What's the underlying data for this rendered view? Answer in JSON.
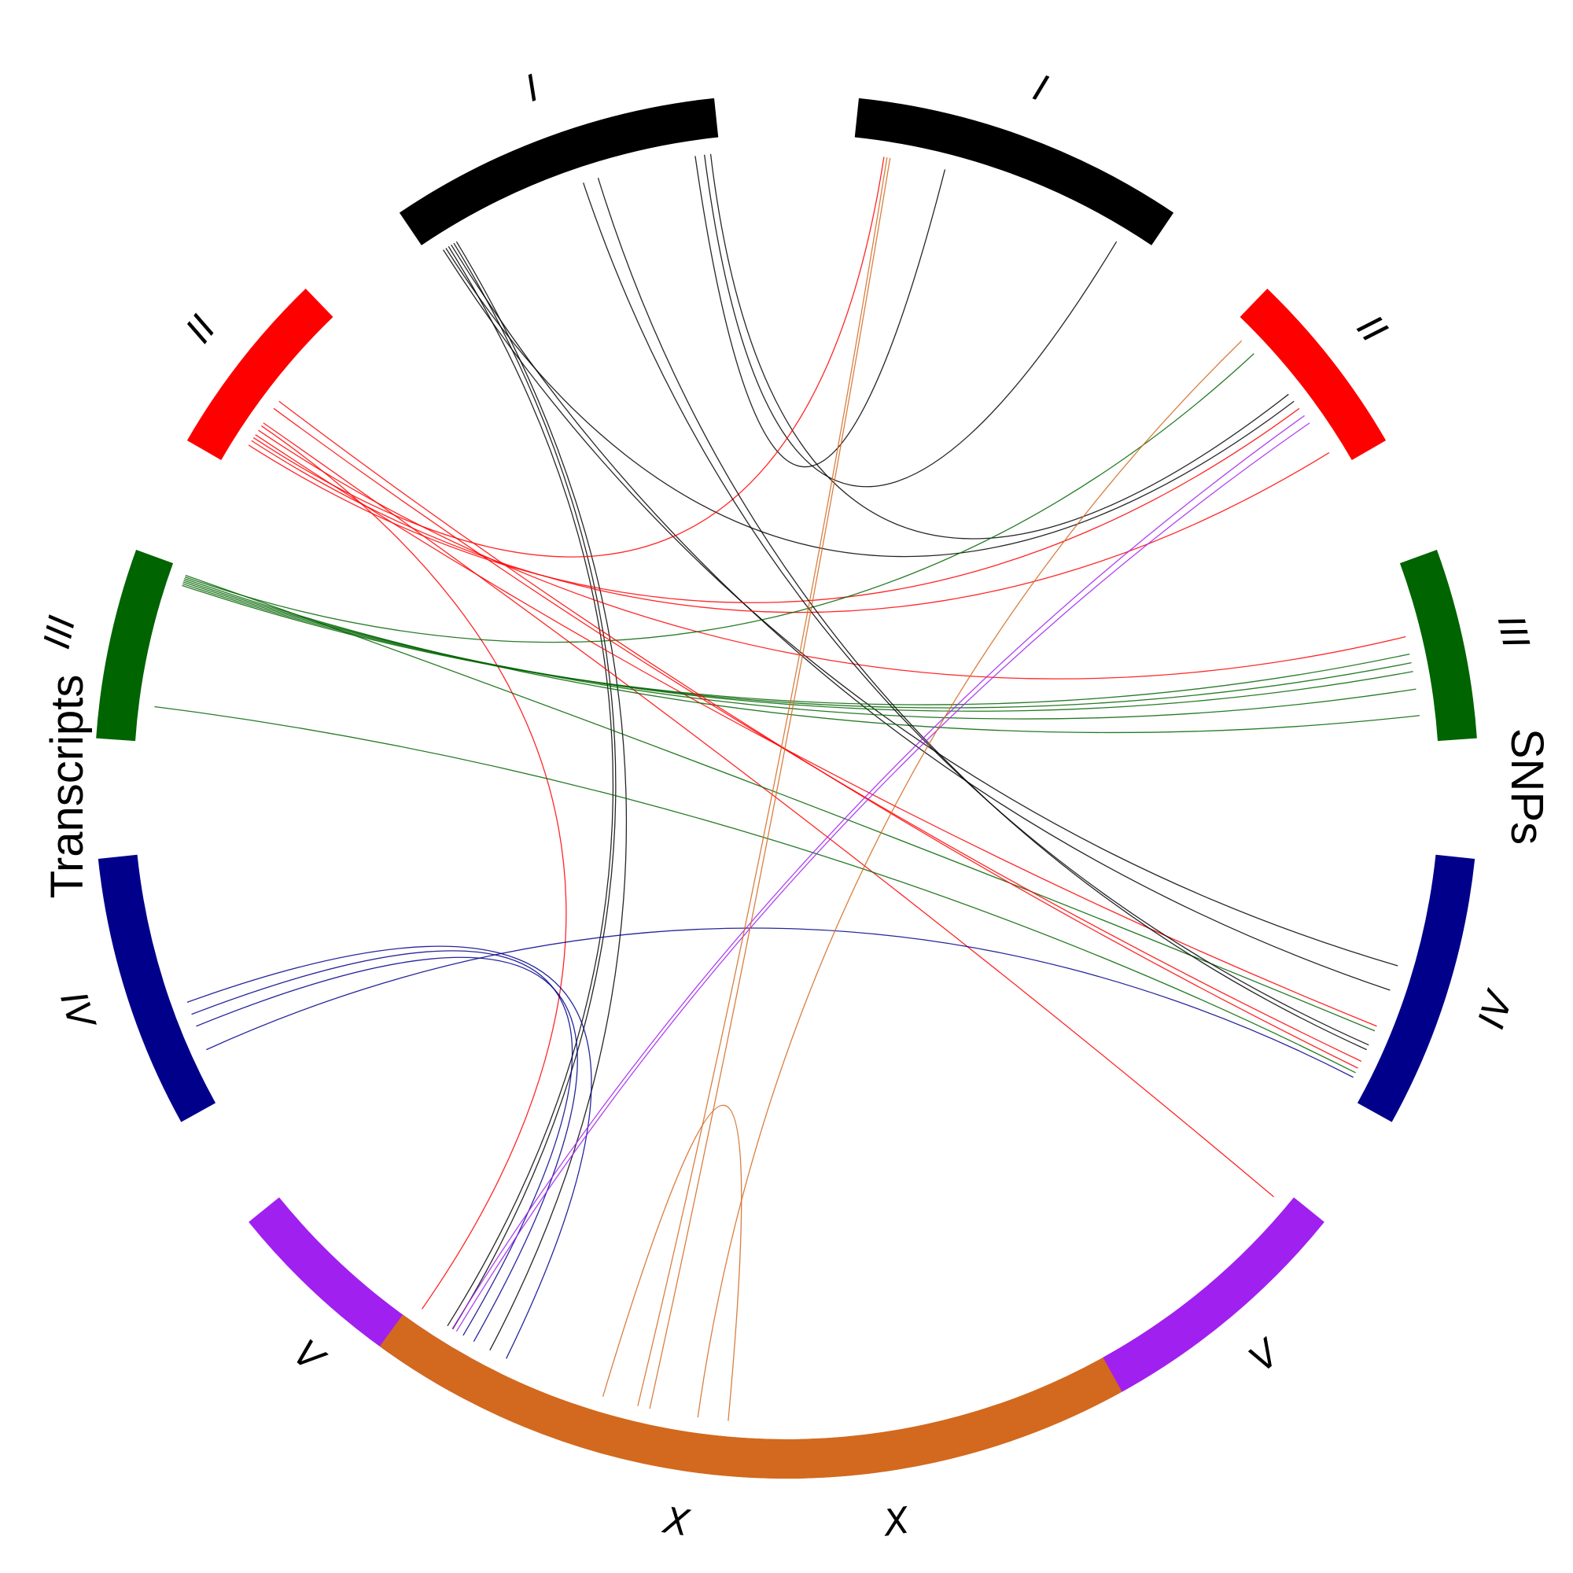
{
  "titles": {
    "left": "Transcripts",
    "right": "SNPs"
  },
  "chart_data": {
    "type": "circos",
    "chromosomes": [
      {
        "name": "I",
        "label": "I",
        "color": "#000000"
      },
      {
        "name": "II",
        "label": "II",
        "color": "#ff0000"
      },
      {
        "name": "III",
        "label": "III",
        "color": "#006400"
      },
      {
        "name": "IV",
        "label": "IV",
        "color": "#00008b"
      },
      {
        "name": "V",
        "label": "V",
        "color": "#a020f0"
      },
      {
        "name": "X",
        "label": "X",
        "color": "#d2691e"
      }
    ],
    "sides": [
      "Transcripts",
      "SNPs"
    ],
    "links": [
      {
        "from": "I",
        "from_pos": 0.05,
        "to": "IV",
        "to_pos": 0.45
      },
      {
        "from": "I",
        "from_pos": 0.08,
        "to": "IV",
        "to_pos": 0.55
      },
      {
        "from": "I",
        "from_pos": 0.06,
        "to": "II",
        "to_pos": 0.55
      },
      {
        "from": "I",
        "from_pos": 0.07,
        "to": "X",
        "to_pos": 0.93
      },
      {
        "from": "I",
        "from_pos": 0.09,
        "to": "X",
        "to_pos": 0.92
      },
      {
        "from": "I",
        "from_pos": 0.1,
        "to": "X",
        "to_pos": 0.85
      },
      {
        "from": "I",
        "from_pos": 0.95,
        "to": "I",
        "to_pos": 0.9
      },
      {
        "from": "I",
        "from_pos": 0.97,
        "to": "II",
        "to_pos": 0.5
      },
      {
        "from": "I",
        "from_pos": 0.92,
        "to": "I",
        "to_pos": 0.3
      },
      {
        "from": "II",
        "from_pos": 0.2,
        "to": "I",
        "to_pos": 0.1
      },
      {
        "from": "II",
        "from_pos": 0.15,
        "to": "II",
        "to_pos": 0.6
      },
      {
        "from": "II",
        "from_pos": 0.18,
        "to": "II",
        "to_pos": 0.9
      },
      {
        "from": "II",
        "from_pos": 0.25,
        "to": "III",
        "to_pos": 0.4
      },
      {
        "from": "II",
        "from_pos": 0.28,
        "to": "X",
        "to_pos": 0.98
      },
      {
        "from": "II",
        "from_pos": 0.22,
        "to": "IV",
        "to_pos": 0.7
      },
      {
        "from": "II",
        "from_pos": 0.3,
        "to": "V",
        "to_pos": 0.05
      },
      {
        "from": "III",
        "from_pos": 0.9,
        "to": "III",
        "to_pos": 0.5
      },
      {
        "from": "III",
        "from_pos": 0.91,
        "to": "III",
        "to_pos": 0.55
      },
      {
        "from": "III",
        "from_pos": 0.92,
        "to": "III",
        "to_pos": 0.6
      },
      {
        "from": "III",
        "from_pos": 0.93,
        "to": "III",
        "to_pos": 0.7
      },
      {
        "from": "III",
        "from_pos": 0.94,
        "to": "III",
        "to_pos": 0.85
      },
      {
        "from": "III",
        "from_pos": 0.95,
        "to": "II",
        "to_pos": 0.2
      },
      {
        "from": "III",
        "from_pos": 0.96,
        "to": "IV",
        "to_pos": 0.72
      },
      {
        "from": "I",
        "from_pos": 0.55,
        "to": "IV",
        "to_pos": 0.78
      },
      {
        "from": "I",
        "from_pos": 0.6,
        "to": "IV",
        "to_pos": 0.8
      },
      {
        "from": "II",
        "from_pos": 0.4,
        "to": "IV",
        "to_pos": 0.85
      },
      {
        "from": "II",
        "from_pos": 0.45,
        "to": "IV",
        "to_pos": 0.88
      },
      {
        "from": "III",
        "from_pos": 0.2,
        "to": "IV",
        "to_pos": 0.9
      },
      {
        "from": "IV",
        "from_pos": 0.2,
        "to": "IV",
        "to_pos": 0.92
      },
      {
        "from": "IV",
        "from_pos": 0.3,
        "to": "X",
        "to_pos": 0.88
      },
      {
        "from": "IV",
        "from_pos": 0.35,
        "to": "X",
        "to_pos": 0.9
      },
      {
        "from": "IV",
        "from_pos": 0.4,
        "to": "X",
        "to_pos": 0.82
      },
      {
        "from": "V",
        "from_pos": 0.1,
        "to": "II",
        "to_pos": 0.7
      },
      {
        "from": "V",
        "from_pos": 0.12,
        "to": "II",
        "to_pos": 0.65
      },
      {
        "from": "X",
        "from_pos": 0.88,
        "to": "I",
        "to_pos": 0.12
      },
      {
        "from": "X",
        "from_pos": 0.9,
        "to": "I",
        "to_pos": 0.11
      },
      {
        "from": "X",
        "from_pos": 0.8,
        "to": "II",
        "to_pos": 0.1
      },
      {
        "from": "X",
        "from_pos": 0.75,
        "to": "X",
        "to_pos": 0.65
      }
    ]
  }
}
